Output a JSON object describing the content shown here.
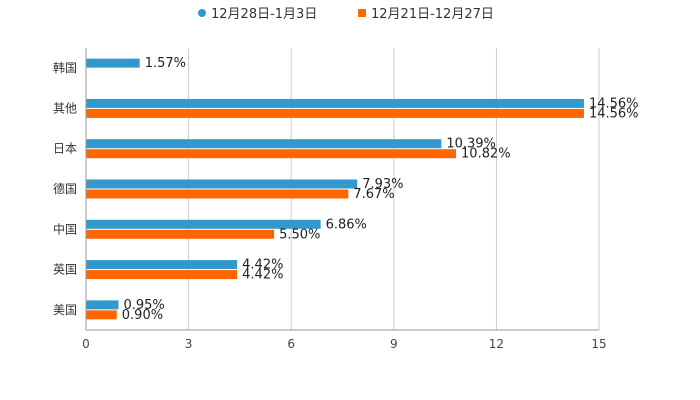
{
  "chart_data": {
    "type": "bar",
    "orientation": "horizontal",
    "title": "",
    "xlabel": "",
    "ylabel": "",
    "categories": [
      "韩国",
      "其他",
      "日本",
      "德国",
      "中国",
      "英国",
      "美国"
    ],
    "series": [
      {
        "name": "12月28日-1月3日",
        "color": "#3399cc",
        "values": [
          1.57,
          14.56,
          10.39,
          7.93,
          6.86,
          4.42,
          0.95
        ],
        "labels": [
          "1.57%",
          "14.56%",
          "10.39%",
          "7.93%",
          "6.86%",
          "4.42%",
          "0.95%"
        ]
      },
      {
        "name": "12月21日-12月27日",
        "color": "#ff6600",
        "values": [
          null,
          14.56,
          10.82,
          7.67,
          5.5,
          4.42,
          0.9
        ],
        "labels": [
          "",
          "14.56%",
          "10.82%",
          "7.67%",
          "5.50%",
          "4.42%",
          "0.90%"
        ]
      }
    ],
    "xlim": [
      0,
      15
    ],
    "xticks": [
      0,
      3,
      6,
      9,
      12,
      15
    ],
    "xtick_labels": [
      "0",
      "3",
      "6",
      "9",
      "12",
      "15"
    ],
    "grid": true,
    "legend_position": "top-center"
  }
}
